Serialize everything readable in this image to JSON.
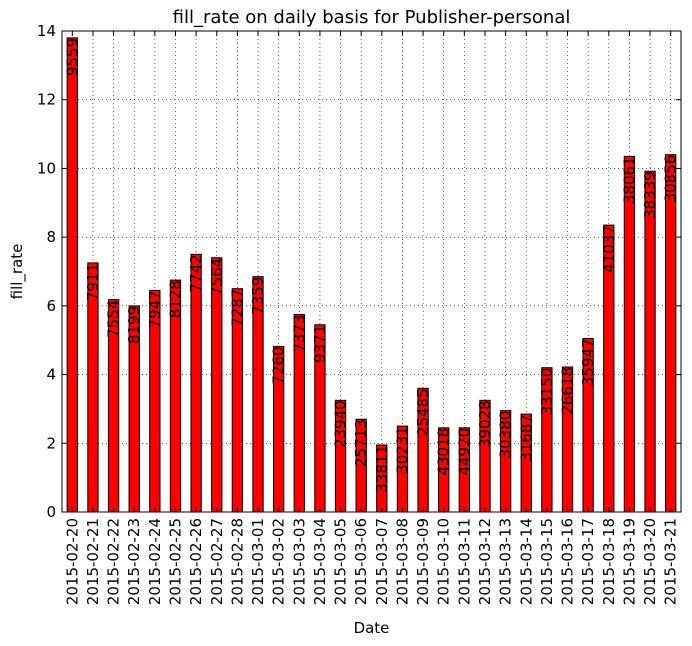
{
  "chart_data": {
    "type": "bar",
    "title": "fill_rate on daily basis for Publisher-personal",
    "xlabel": "Date",
    "ylabel": "fill_rate",
    "ylim": [
      0,
      14
    ],
    "yticks": [
      "0",
      "2",
      "4",
      "6",
      "8",
      "10",
      "12",
      "14"
    ],
    "grid": true,
    "bar_color": "#ff0000",
    "edge_color": "#000000",
    "categories": [
      "2015-02-20",
      "2015-02-21",
      "2015-02-22",
      "2015-02-23",
      "2015-02-24",
      "2015-02-25",
      "2015-02-26",
      "2015-02-27",
      "2015-02-28",
      "2015-03-01",
      "2015-03-02",
      "2015-03-03",
      "2015-03-04",
      "2015-03-05",
      "2015-03-06",
      "2015-03-07",
      "2015-03-08",
      "2015-03-09",
      "2015-03-10",
      "2015-03-11",
      "2015-03-12",
      "2015-03-13",
      "2015-03-14",
      "2015-03-15",
      "2015-03-16",
      "2015-03-17",
      "2015-03-18",
      "2015-03-19",
      "2015-03-20",
      "2015-03-21"
    ],
    "values": [
      13.8,
      7.25,
      6.18,
      6.0,
      6.45,
      6.75,
      7.5,
      7.4,
      6.5,
      6.85,
      4.82,
      5.75,
      5.45,
      3.25,
      2.7,
      1.95,
      2.5,
      3.6,
      2.45,
      2.45,
      3.25,
      2.95,
      2.85,
      4.2,
      4.22,
      5.05,
      8.35,
      10.35,
      9.92,
      10.4
    ],
    "data_labels": [
      "9559",
      "7911",
      "7554",
      "8199",
      "7947",
      "8128",
      "7742",
      "7564",
      "7287",
      "7359",
      "7260",
      "7373",
      "9371",
      "23940",
      "25713",
      "33811",
      "30231",
      "25485",
      "43018",
      "44920",
      "39028",
      "30380",
      "31687",
      "33150",
      "26618",
      "35947",
      "41037",
      "38061",
      "38339",
      "30856"
    ]
  }
}
